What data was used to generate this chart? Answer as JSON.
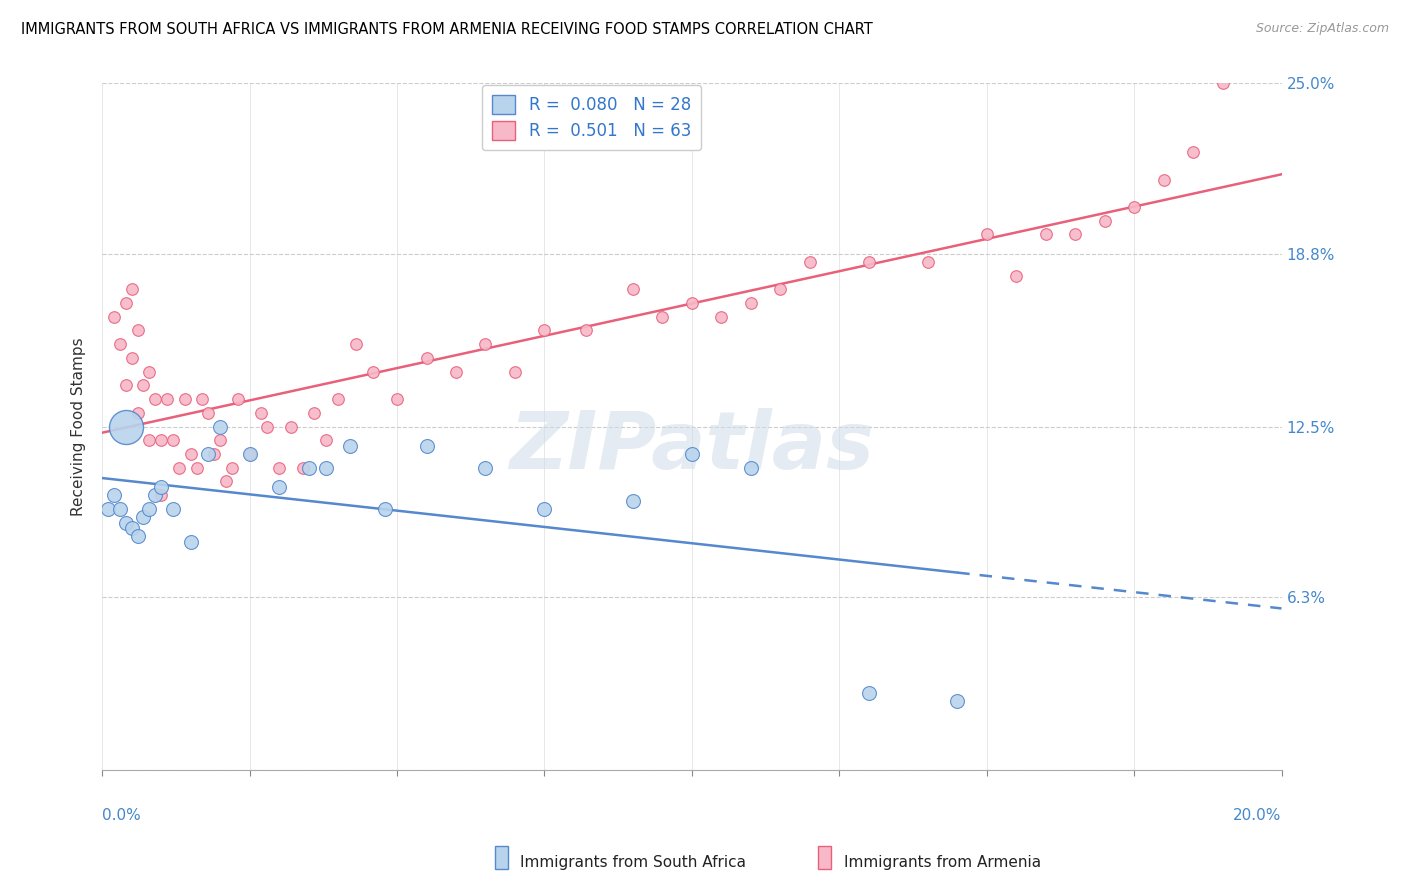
{
  "title": "IMMIGRANTS FROM SOUTH AFRICA VS IMMIGRANTS FROM ARMENIA RECEIVING FOOD STAMPS CORRELATION CHART",
  "source": "Source: ZipAtlas.com",
  "ylabel": "Receiving Food Stamps",
  "legend1_r": "0.080",
  "legend1_n": "28",
  "legend2_r": "0.501",
  "legend2_n": "63",
  "legend1_color": "#b8d4ed",
  "legend2_color": "#f7b8c8",
  "trend1_color": "#5588cc",
  "trend2_color": "#e8607a",
  "watermark": "ZIPatlas",
  "xlim": [
    0.0,
    0.2
  ],
  "ylim": [
    0.0,
    0.25
  ],
  "right_yticks": [
    0.0,
    0.063,
    0.125,
    0.188,
    0.25
  ],
  "right_yticklabels": [
    "",
    "6.3%",
    "12.5%",
    "18.8%",
    "25.0%"
  ],
  "sa_x": [
    0.001,
    0.002,
    0.003,
    0.004,
    0.005,
    0.006,
    0.007,
    0.008,
    0.009,
    0.01,
    0.012,
    0.015,
    0.018,
    0.02,
    0.025,
    0.03,
    0.035,
    0.038,
    0.042,
    0.048,
    0.055,
    0.065,
    0.075,
    0.09,
    0.1,
    0.11,
    0.13,
    0.145
  ],
  "sa_y": [
    0.095,
    0.1,
    0.095,
    0.09,
    0.088,
    0.085,
    0.092,
    0.095,
    0.1,
    0.103,
    0.095,
    0.083,
    0.115,
    0.125,
    0.115,
    0.103,
    0.11,
    0.11,
    0.118,
    0.095,
    0.118,
    0.11,
    0.095,
    0.098,
    0.115,
    0.11,
    0.028,
    0.025
  ],
  "arm_x": [
    0.002,
    0.003,
    0.004,
    0.004,
    0.005,
    0.005,
    0.006,
    0.006,
    0.007,
    0.008,
    0.008,
    0.009,
    0.01,
    0.01,
    0.011,
    0.012,
    0.013,
    0.014,
    0.015,
    0.016,
    0.017,
    0.018,
    0.019,
    0.02,
    0.021,
    0.022,
    0.023,
    0.025,
    0.027,
    0.028,
    0.03,
    0.032,
    0.034,
    0.036,
    0.038,
    0.04,
    0.043,
    0.046,
    0.05,
    0.055,
    0.06,
    0.065,
    0.07,
    0.075,
    0.082,
    0.09,
    0.095,
    0.1,
    0.105,
    0.11,
    0.115,
    0.12,
    0.13,
    0.14,
    0.15,
    0.155,
    0.16,
    0.165,
    0.17,
    0.175,
    0.18,
    0.185,
    0.19
  ],
  "arm_y": [
    0.165,
    0.155,
    0.17,
    0.14,
    0.175,
    0.15,
    0.16,
    0.13,
    0.14,
    0.145,
    0.12,
    0.135,
    0.12,
    0.1,
    0.135,
    0.12,
    0.11,
    0.135,
    0.115,
    0.11,
    0.135,
    0.13,
    0.115,
    0.12,
    0.105,
    0.11,
    0.135,
    0.115,
    0.13,
    0.125,
    0.11,
    0.125,
    0.11,
    0.13,
    0.12,
    0.135,
    0.155,
    0.145,
    0.135,
    0.15,
    0.145,
    0.155,
    0.145,
    0.16,
    0.16,
    0.175,
    0.165,
    0.17,
    0.165,
    0.17,
    0.175,
    0.185,
    0.185,
    0.185,
    0.195,
    0.18,
    0.195,
    0.195,
    0.2,
    0.205,
    0.215,
    0.225,
    0.25
  ]
}
